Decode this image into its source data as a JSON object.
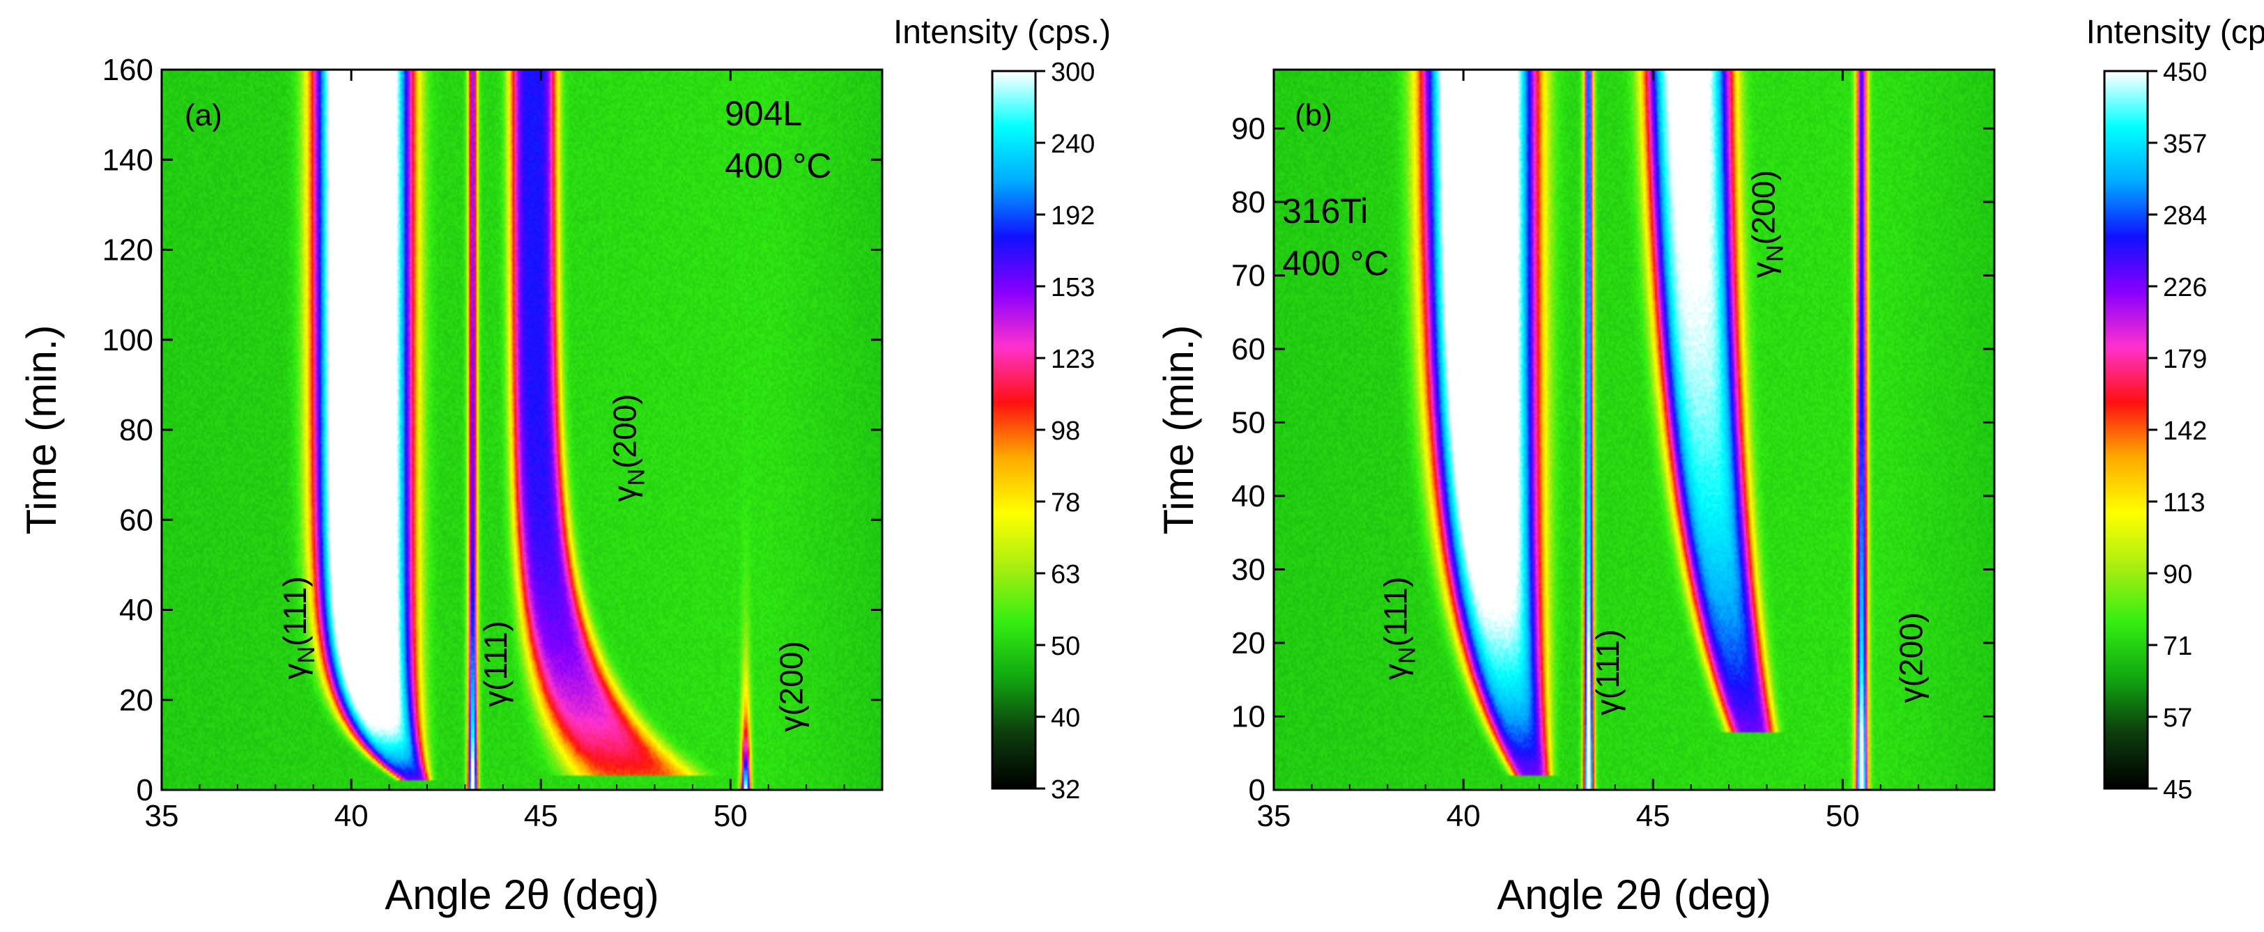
{
  "chart_data": [
    {
      "type": "heatmap",
      "panel": "(a)",
      "sample": "904L",
      "temperature": "400 °C",
      "xlabel": "Angle 2θ (deg)",
      "ylabel": "Time (min.)",
      "xlim": [
        35,
        54
      ],
      "ylim": [
        0,
        160
      ],
      "xticks": [
        "35",
        "40",
        "45",
        "50"
      ],
      "yticks": [
        "0",
        "20",
        "40",
        "60",
        "80",
        "100",
        "120",
        "140",
        "160"
      ],
      "colorbar": {
        "title": "Intensity (cps.)",
        "ticks": [
          "32",
          "40",
          "50",
          "63",
          "78",
          "98",
          "123",
          "153",
          "192",
          "240",
          "300"
        ]
      },
      "peaks": [
        {
          "label": "γN(111)",
          "label_base": "γ",
          "label_sub": "N",
          "label_suffix": "(111)",
          "label_at": [
            38.8,
            36
          ],
          "center_start": 41.7,
          "center_end": 40.3,
          "width_start": 0.35,
          "width_end": 1.15,
          "amp_start": 0.5,
          "amp_end": 1.0,
          "start_time": 2,
          "tau": 13
        },
        {
          "label": "γ(111)",
          "label_base": "γ",
          "label_sub": "",
          "label_suffix": "(111)",
          "label_at": [
            44.1,
            28
          ],
          "center": 43.2,
          "width": 0.12,
          "amp_start": 0.9,
          "amp_end": 0.48
        },
        {
          "label": "γN(200)",
          "label_base": "γ",
          "label_sub": "N",
          "label_suffix": "(200)",
          "label_at": [
            47.5,
            76
          ],
          "center_start": 47.5,
          "center_end": 44.8,
          "width_start": 1.5,
          "width_end": 0.55,
          "amp_start": 0.3,
          "amp_end": 0.56,
          "start_time": 3,
          "tau": 22
        },
        {
          "label": "γ(200)",
          "label_base": "γ",
          "label_sub": "",
          "label_suffix": "(200)",
          "label_at": [
            51.9,
            23
          ],
          "center": 50.4,
          "width": 0.12,
          "amp_start": 0.85,
          "amp_end": 0.0,
          "tau": 14
        }
      ]
    },
    {
      "type": "heatmap",
      "panel": "(b)",
      "sample": "316Ti",
      "temperature": "400 °C",
      "xlabel": "Angle 2θ (deg)",
      "ylabel": "Time (min.)",
      "xlim": [
        35,
        54
      ],
      "ylim": [
        0,
        98
      ],
      "xticks": [
        "35",
        "40",
        "45",
        "50"
      ],
      "yticks": [
        "0",
        "10",
        "20",
        "30",
        "40",
        "50",
        "60",
        "70",
        "80",
        "90"
      ],
      "colorbar": {
        "title": "Intensity (cps)",
        "ticks": [
          "45",
          "57",
          "71",
          "90",
          "113",
          "142",
          "179",
          "226",
          "284",
          "357",
          "450"
        ]
      },
      "peaks": [
        {
          "label": "γN(111)",
          "label_base": "γ",
          "label_sub": "N",
          "label_suffix": "(111)",
          "label_at": [
            38.5,
            22
          ],
          "center_start": 41.8,
          "center_end": 40.4,
          "width_start": 0.45,
          "width_end": 1.35,
          "amp_start": 0.5,
          "amp_end": 0.98,
          "start_time": 2,
          "tau": 22
        },
        {
          "label": "γ(111)",
          "label_base": "γ",
          "label_sub": "",
          "label_suffix": "(111)",
          "label_at": [
            44.1,
            16
          ],
          "center": 43.3,
          "width": 0.12,
          "amp_start": 1.0,
          "amp_end": 0.62
        },
        {
          "label": "γN(200)",
          "label_base": "γ",
          "label_sub": "N",
          "label_suffix": "(200)",
          "label_at": [
            48.2,
            77
          ],
          "center_start": 47.6,
          "center_end": 45.8,
          "width_start": 0.55,
          "width_end": 1.05,
          "amp_start": 0.5,
          "amp_end": 0.86,
          "start_time": 8,
          "tau": 35
        },
        {
          "label": "γ(200)",
          "label_base": "γ",
          "label_sub": "",
          "label_suffix": "(200)",
          "label_at": [
            52.1,
            18
          ],
          "center": 50.5,
          "width": 0.15,
          "amp_start": 0.9,
          "amp_end": 0.5
        }
      ]
    }
  ],
  "colors": {
    "colormap": [
      "#000000",
      "#0d3d0d",
      "#11a811",
      "#33ee11",
      "#a8ee11",
      "#ffff00",
      "#ffaa00",
      "#ff1111",
      "#ff33cc",
      "#8800ff",
      "#1111ff",
      "#00aaff",
      "#00ffff",
      "#ffffff"
    ]
  }
}
